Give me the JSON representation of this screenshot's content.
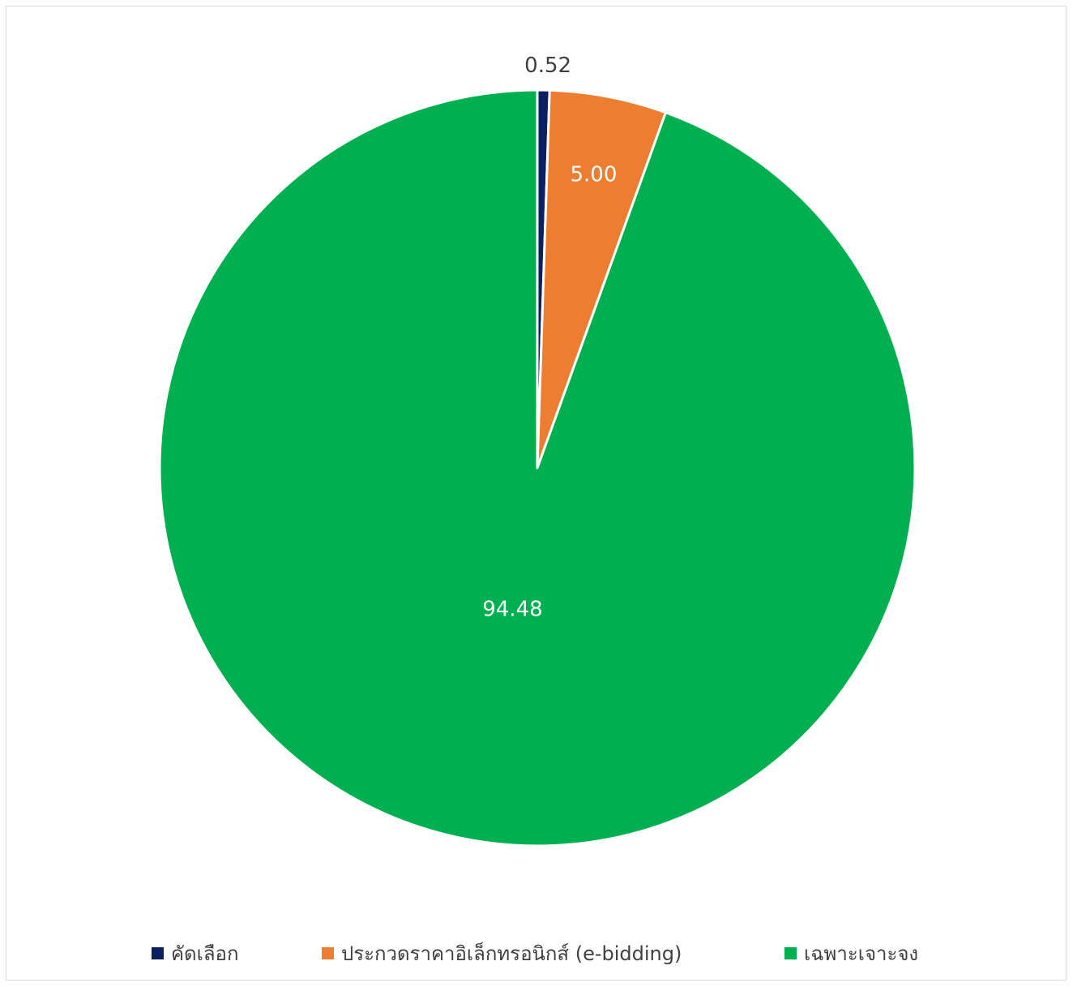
{
  "chart_data": {
    "type": "pie",
    "title": "",
    "categories": [
      "คัดเลือก",
      "ประกวดราคาอิเล็กทรอนิกส์ (e-bidding)",
      "เฉพาะเจาะจง"
    ],
    "values": [
      0.52,
      5.0,
      94.48
    ],
    "data_labels": [
      "0.52",
      "5.00",
      "94.48"
    ],
    "colors": [
      "#0b2060",
      "#ed7d31",
      "#00b050"
    ],
    "start_angle": "12 o'clock, clockwise",
    "legend_position": "bottom"
  }
}
